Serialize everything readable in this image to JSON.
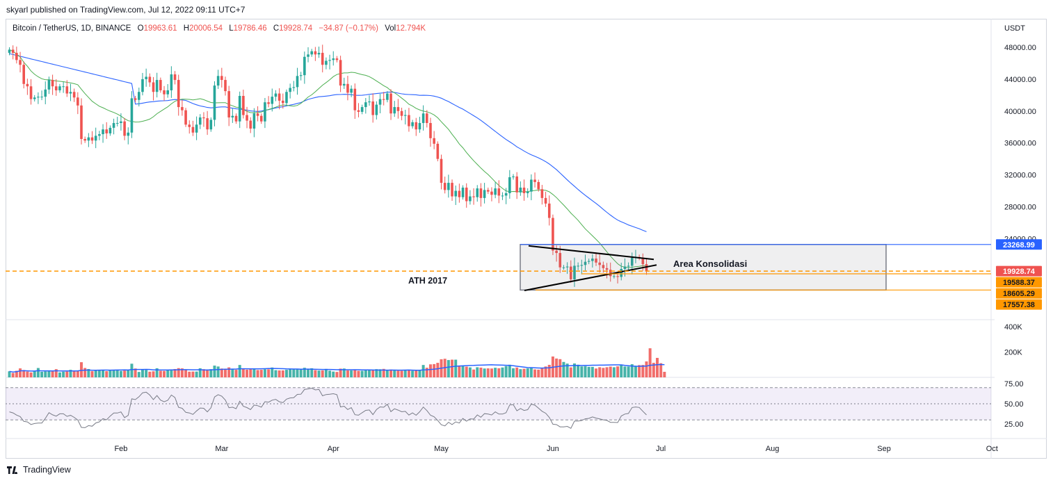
{
  "header": {
    "published": "skyarl published on TradingView.com, Jul 12, 2022 09:11 UTC+7"
  },
  "legend": {
    "symbol": "Bitcoin / TetherUS, 1D, BINANCE",
    "open_label": "O",
    "open": "19963.61",
    "high_label": "H",
    "high": "20006.54",
    "low_label": "L",
    "low": "19786.46",
    "close_label": "C",
    "close": "19928.74",
    "change": "−34.87 (−0.17%)",
    "vol_label": "Vol",
    "vol": "12.794K"
  },
  "unit": "USDT",
  "footer": {
    "brand": "TradingView"
  },
  "colors": {
    "up": "#26a69a",
    "down": "#ef5350",
    "ma_fast": "#4caf50",
    "ma_slow": "#2962ff",
    "orange": "#ff9800",
    "blue_line": "#2962ff",
    "rsi": "#787b86",
    "rsi_band": "#7e57c2"
  },
  "chart_data": {
    "type": "candlestick",
    "price_ticks": [
      "48000.00",
      "44000.00",
      "40000.00",
      "36000.00",
      "32000.00",
      "28000.00",
      "24000.00"
    ],
    "volume_ticks": [
      "400K",
      "200K"
    ],
    "rsi_ticks": [
      "75.00",
      "50.00",
      "25.00"
    ],
    "months": [
      "Feb",
      "Mar",
      "Apr",
      "May",
      "Jun",
      "Jul",
      "Aug",
      "Sep",
      "Oct"
    ],
    "price_labels": [
      {
        "value": 23268.99,
        "text": "23268.99",
        "color": "#2962ff"
      },
      {
        "value": 19928.74,
        "text": "19928.74",
        "color": "#ef5350"
      },
      {
        "value": 19588.37,
        "text": "19588.37",
        "color": "#ff9800"
      },
      {
        "value": 18605.29,
        "text": "18605.29",
        "color": "#ff9800"
      },
      {
        "value": 17557.38,
        "text": "17557.38",
        "color": "#ff9800"
      }
    ],
    "annotations": {
      "box_label": "Area Konsolidasi",
      "ath_label": "ATH 2017"
    },
    "start_date": "2022-01-01",
    "closes": [
      47700,
      47300,
      46400,
      45800,
      43400,
      43100,
      41500,
      41700,
      41800,
      41800,
      42700,
      43900,
      43100,
      42600,
      43100,
      43100,
      42200,
      42400,
      41700,
      40700,
      36500,
      36300,
      36700,
      36300,
      36900,
      37100,
      37700,
      37200,
      37900,
      38500,
      38500,
      38700,
      36900,
      37300,
      41600,
      41400,
      42400,
      44000,
      44300,
      43600,
      42400,
      43900,
      42600,
      42100,
      42600,
      44600,
      43900,
      40500,
      40100,
      38300,
      38000,
      37300,
      38300,
      39200,
      39100,
      37700,
      38900,
      43200,
      44400,
      43900,
      42500,
      39200,
      39400,
      38700,
      41900,
      39500,
      38800,
      37800,
      39700,
      39400,
      38700,
      41100,
      40900,
      41800,
      42200,
      41300,
      41000,
      42400,
      42900,
      43000,
      44400,
      44500,
      46800,
      47100,
      47500,
      47100,
      47300,
      45800,
      46300,
      46400,
      46600,
      46400,
      43200,
      43400,
      42300,
      42800,
      40100,
      39900,
      40500,
      41100,
      41200,
      39500,
      40800,
      41500,
      41400,
      42200,
      39700,
      40500,
      40000,
      39400,
      39500,
      38100,
      38600,
      37700,
      38500,
      39700,
      38500,
      36600,
      35900,
      34000,
      31000,
      30100,
      31000,
      29300,
      30000,
      29200,
      30400,
      28700,
      29300,
      29200,
      30300,
      29100,
      30100,
      29900,
      29500,
      30300,
      29400,
      29400,
      29700,
      31700,
      31800,
      29800,
      30400,
      29700,
      29900,
      31400,
      31100,
      30200,
      29100,
      28400,
      26600,
      22500,
      22200,
      20400,
      20400,
      20500,
      18900,
      20600,
      20600,
      20700,
      21100,
      21200,
      21500,
      21000,
      20700,
      20300,
      20100,
      19300,
      19300,
      19200,
      20200,
      20500,
      20600,
      21600,
      21700,
      21600,
      20800,
      19900
    ],
    "volumes": [
      48,
      35,
      52,
      71,
      58,
      46,
      39,
      52,
      74,
      44,
      47,
      51,
      48,
      65,
      39,
      45,
      46,
      60,
      54,
      54,
      120,
      74,
      66,
      49,
      56,
      56,
      56,
      49,
      60,
      60,
      58,
      51,
      54,
      55,
      108,
      70,
      43,
      65,
      58,
      45,
      48,
      72,
      52,
      51,
      57,
      62,
      66,
      73,
      71,
      62,
      45,
      46,
      46,
      72,
      65,
      62,
      65,
      93,
      86,
      70,
      68,
      79,
      69,
      60,
      98,
      70,
      61,
      63,
      70,
      58,
      60,
      64,
      64,
      78,
      57,
      55,
      55,
      60,
      68,
      63,
      63,
      64,
      76,
      64,
      72,
      57,
      54,
      55,
      67,
      53,
      46,
      43,
      69,
      70,
      55,
      55,
      58,
      52,
      52,
      56,
      55,
      56,
      65,
      64,
      67,
      55,
      62,
      56,
      53,
      52,
      55,
      57,
      52,
      54,
      60,
      98,
      76,
      103,
      105,
      115,
      143,
      147,
      137,
      140,
      140,
      92,
      94,
      85,
      79,
      62,
      80,
      77,
      70,
      71,
      70,
      76,
      72,
      78,
      89,
      100,
      72,
      78,
      65,
      68,
      71,
      78,
      63,
      61,
      75,
      86,
      99,
      165,
      149,
      144,
      122,
      109,
      79,
      110,
      100,
      87,
      89,
      83,
      83,
      70,
      80,
      75,
      80,
      85,
      80,
      87,
      96,
      86,
      86,
      104,
      92,
      97,
      98,
      126,
      230,
      115,
      154,
      112,
      44
    ]
  }
}
